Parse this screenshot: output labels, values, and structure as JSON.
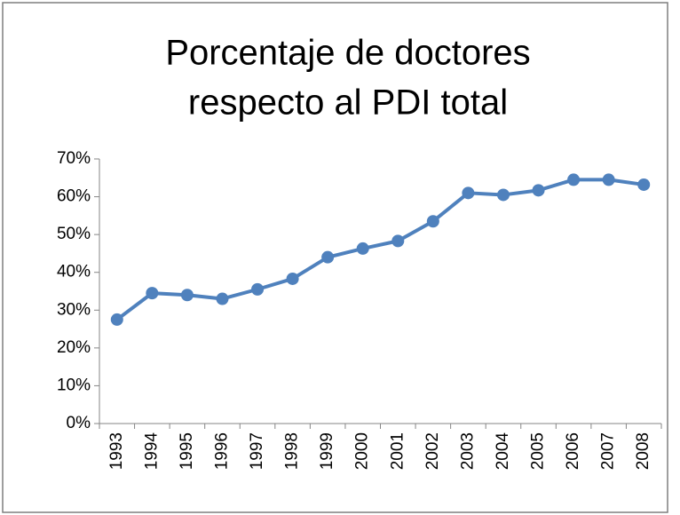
{
  "chart_data": {
    "type": "line",
    "title": [
      "Porcentaje de doctores",
      "respecto al PDI total"
    ],
    "categories": [
      "1993",
      "1994",
      "1995",
      "1996",
      "1997",
      "1998",
      "1999",
      "2000",
      "2001",
      "2002",
      "2003",
      "2004",
      "2005",
      "2006",
      "2007",
      "2008"
    ],
    "series": [
      {
        "name": "Porcentaje de doctores",
        "color": "#4f81bd",
        "values": [
          27.5,
          34.5,
          34,
          33,
          35.5,
          38.3,
          44,
          46.3,
          48.3,
          53.5,
          61,
          60.5,
          61.7,
          64.5,
          64.5,
          63.2
        ]
      }
    ],
    "ylim": [
      0,
      70
    ],
    "yticks": [
      {
        "value": 0,
        "label": "0%"
      },
      {
        "value": 10,
        "label": "10%"
      },
      {
        "value": 20,
        "label": "20%"
      },
      {
        "value": 30,
        "label": "30%"
      },
      {
        "value": 40,
        "label": "40%"
      },
      {
        "value": 50,
        "label": "50%"
      },
      {
        "value": 60,
        "label": "60%"
      },
      {
        "value": 70,
        "label": "70%"
      }
    ],
    "grid": false,
    "legend": false
  }
}
